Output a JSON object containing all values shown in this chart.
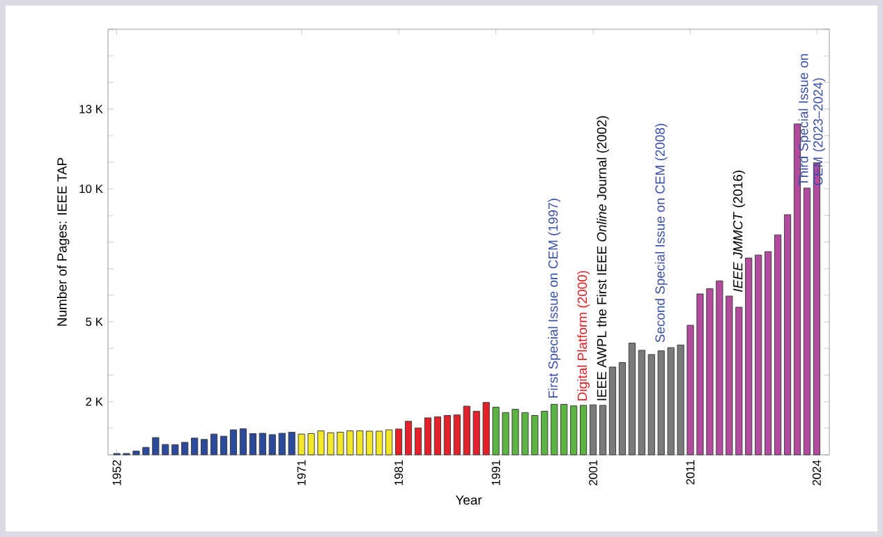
{
  "chart_data": {
    "type": "bar",
    "xlabel": "Year",
    "ylabel": "Number of Pages: IEEE TAP",
    "x": [
      1952,
      1953,
      1954,
      1955,
      1956,
      1957,
      1958,
      1959,
      1960,
      1961,
      1962,
      1963,
      1964,
      1965,
      1966,
      1967,
      1968,
      1969,
      1970,
      1971,
      1972,
      1973,
      1974,
      1975,
      1976,
      1977,
      1978,
      1979,
      1980,
      1981,
      1982,
      1983,
      1984,
      1985,
      1986,
      1987,
      1988,
      1989,
      1990,
      1991,
      1992,
      1993,
      1994,
      1995,
      1996,
      1997,
      1998,
      1999,
      2000,
      2001,
      2002,
      2003,
      2004,
      2005,
      2006,
      2007,
      2008,
      2009,
      2010,
      2011,
      2012,
      2013,
      2014,
      2015,
      2016,
      2017,
      2018,
      2019,
      2020,
      2021,
      2022,
      2023,
      2024
    ],
    "values": [
      50,
      50,
      140,
      280,
      650,
      390,
      380,
      470,
      630,
      580,
      780,
      700,
      940,
      980,
      800,
      810,
      760,
      810,
      850,
      780,
      800,
      900,
      830,
      850,
      900,
      900,
      890,
      890,
      940,
      970,
      1260,
      1010,
      1390,
      1430,
      1480,
      1500,
      1830,
      1640,
      1970,
      1790,
      1590,
      1710,
      1590,
      1480,
      1640,
      1900,
      1900,
      1840,
      1860,
      1880,
      1860,
      3300,
      3470,
      4200,
      3930,
      3770,
      3910,
      4030,
      4130,
      4870,
      6050,
      6250,
      6540,
      5970,
      5550,
      7400,
      7510,
      7640,
      8270,
      9030,
      12440,
      10030,
      10980
    ],
    "colors": [
      "#2b4a9b",
      "#2b4a9b",
      "#2b4a9b",
      "#2b4a9b",
      "#2b4a9b",
      "#2b4a9b",
      "#2b4a9b",
      "#2b4a9b",
      "#2b4a9b",
      "#2b4a9b",
      "#2b4a9b",
      "#2b4a9b",
      "#2b4a9b",
      "#2b4a9b",
      "#2b4a9b",
      "#2b4a9b",
      "#2b4a9b",
      "#2b4a9b",
      "#2b4a9b",
      "#f2e829",
      "#f2e829",
      "#f2e829",
      "#f2e829",
      "#f2e829",
      "#f2e829",
      "#f2e829",
      "#f2e829",
      "#f2e829",
      "#f2e829",
      "#e4202a",
      "#e4202a",
      "#e4202a",
      "#e4202a",
      "#e4202a",
      "#e4202a",
      "#e4202a",
      "#e4202a",
      "#e4202a",
      "#e4202a",
      "#5cb543",
      "#5cb543",
      "#5cb543",
      "#5cb543",
      "#5cb543",
      "#5cb543",
      "#5cb543",
      "#5cb543",
      "#5cb543",
      "#5cb543",
      "#7a7a7a",
      "#7a7a7a",
      "#7a7a7a",
      "#7a7a7a",
      "#7a7a7a",
      "#7a7a7a",
      "#7a7a7a",
      "#7a7a7a",
      "#7a7a7a",
      "#7a7a7a",
      "#b24a9e",
      "#b24a9e",
      "#b24a9e",
      "#b24a9e",
      "#b24a9e",
      "#b24a9e",
      "#b24a9e",
      "#b24a9e",
      "#b24a9e",
      "#b24a9e",
      "#b24a9e",
      "#b24a9e",
      "#b24a9e",
      "#b24a9e"
    ],
    "xlim": [
      1951.1,
      2025.3
    ],
    "ylim": [
      0,
      16000
    ],
    "xticks": [
      1952,
      1971,
      1981,
      1991,
      2001,
      2011,
      2024
    ],
    "yticks": [
      {
        "value": 0,
        "label": null
      },
      {
        "value": 1000,
        "label": null
      },
      {
        "value": 2000,
        "label": "2 K"
      },
      {
        "value": 3000,
        "label": null
      },
      {
        "value": 4000,
        "label": null
      },
      {
        "value": 5000,
        "label": "5 K"
      },
      {
        "value": 6000,
        "label": null
      },
      {
        "value": 7000,
        "label": null
      },
      {
        "value": 8000,
        "label": null
      },
      {
        "value": 9000,
        "label": null
      },
      {
        "value": 10000,
        "label": "10 K"
      },
      {
        "value": 11000,
        "label": null
      },
      {
        "value": 12000,
        "label": null
      },
      {
        "value": 13000,
        "label": "13 K"
      },
      {
        "value": 14000,
        "label": null
      },
      {
        "value": 15000,
        "label": null
      },
      {
        "value": 16000,
        "label": null
      }
    ],
    "annotations": [
      "First Special Issue on CEM (1997)",
      "Digital Platform (2000)",
      "IEEE AWPL the First IEEE *Online* Journal (2002)",
      "Second Special Issue on CEM (2008)",
      "*IEEE JMMCT* (2016)",
      "Third Special Issue on CEM (2023–2024)"
    ]
  }
}
